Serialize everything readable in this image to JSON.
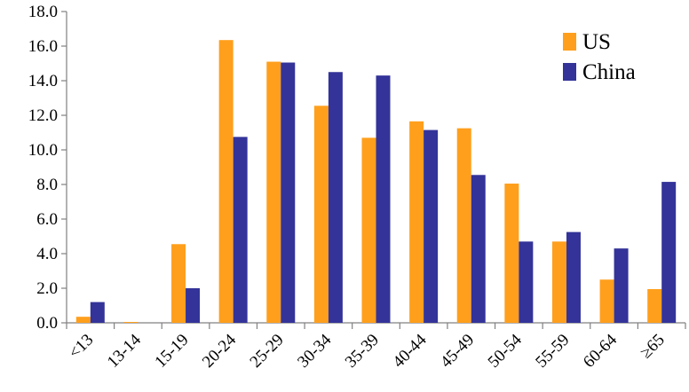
{
  "chart_data": {
    "type": "bar",
    "categories": [
      "<13",
      "13-14",
      "15-19",
      "20-24",
      "25-29",
      "30-34",
      "35-39",
      "40-44",
      "45-49",
      "50-54",
      "55-59",
      "60-64",
      "≥65"
    ],
    "series": [
      {
        "name": "US",
        "color": "#FF9F1C",
        "values": [
          0.35,
          0.05,
          4.55,
          16.35,
          15.1,
          12.55,
          10.7,
          11.65,
          11.25,
          8.05,
          4.7,
          2.5,
          1.95
        ]
      },
      {
        "name": "China",
        "color": "#333399",
        "values": [
          1.2,
          0.0,
          2.0,
          10.75,
          15.05,
          14.5,
          14.3,
          11.15,
          8.55,
          4.7,
          5.25,
          4.3,
          8.15
        ]
      }
    ],
    "y_ticks": [
      "0.0",
      "2.0",
      "4.0",
      "6.0",
      "8.0",
      "10.0",
      "12.0",
      "14.0",
      "16.0",
      "18.0"
    ],
    "ylim": [
      0,
      18
    ],
    "title": "",
    "xlabel": "",
    "ylabel": "",
    "grid": false,
    "legend_position": "top-right"
  }
}
